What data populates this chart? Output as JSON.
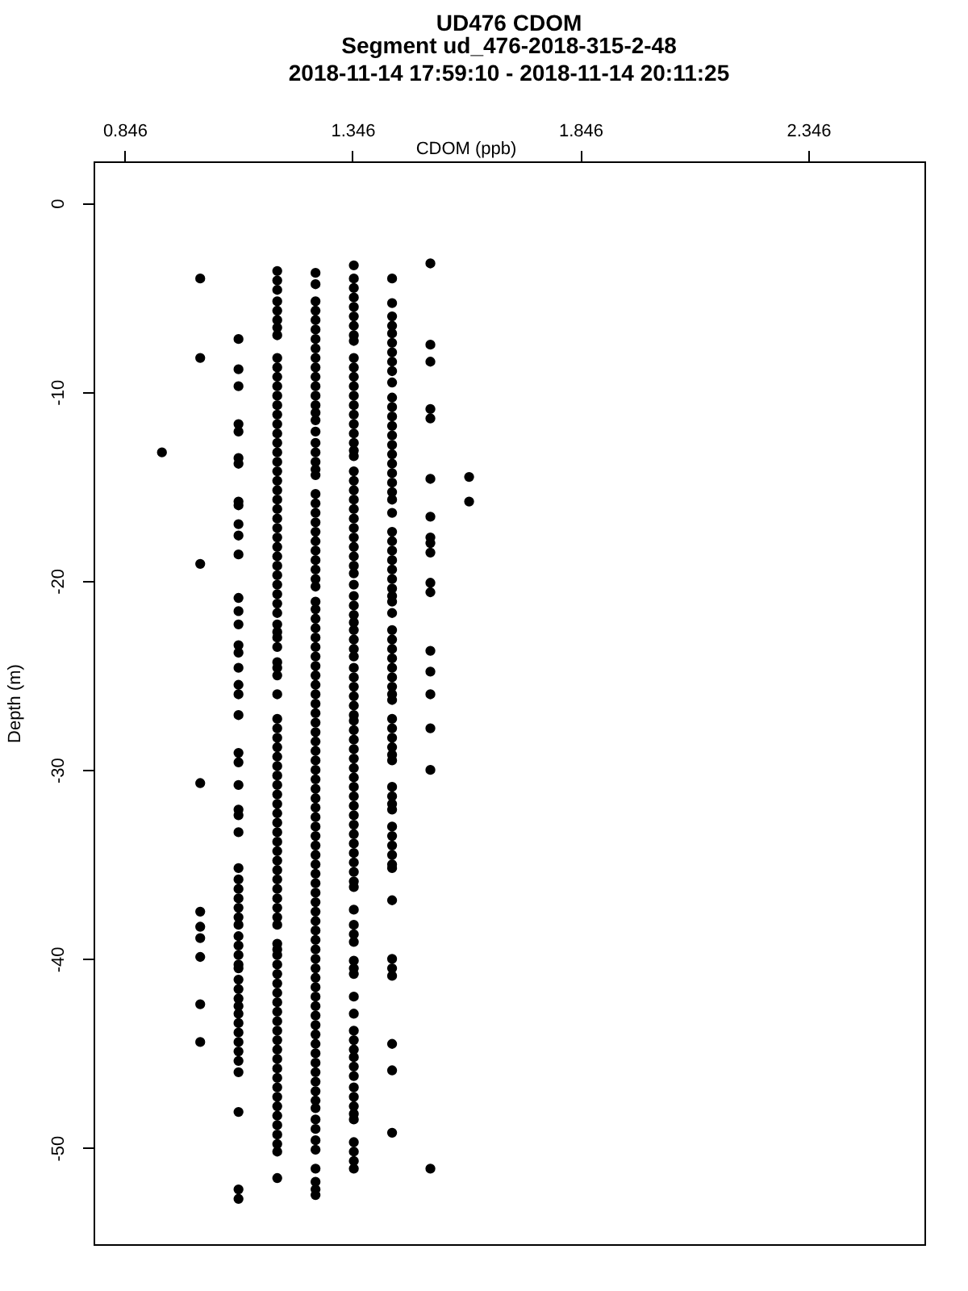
{
  "chart_data": {
    "type": "scatter",
    "title": "UD476 CDOM",
    "subtitle": "Segment ud_476-2018-315-2-48\n2018-11-14 17:59:10 - 2018-11-14 20:11:25",
    "xlabel": "CDOM (ppb)",
    "ylabel": "Depth (m)",
    "xlim": [
      0.778,
      2.601
    ],
    "ylim": [
      -55.1,
      2.2
    ],
    "xticks": [
      0.846,
      1.346,
      1.846,
      2.346
    ],
    "yticks": [
      0,
      -10,
      -20,
      -30,
      -40,
      -50
    ],
    "marker": "circle",
    "grid": false,
    "legend": false,
    "series": [
      {
        "color": "#000000",
        "x": [
          0.928
        ],
        "values": [
          -13.2
        ]
      },
      {
        "color": "#000000",
        "x": [
          1.012,
          1.012,
          1.012,
          1.012,
          1.012,
          1.012,
          1.012,
          1.012,
          1.012,
          1.012
        ],
        "values": [
          -4.0,
          -8.2,
          -19.1,
          -30.7,
          -37.5,
          -38.3,
          -38.9,
          -39.9,
          -42.4,
          -44.4
        ]
      },
      {
        "color": "#000000",
        "x": [
          1.096,
          1.096,
          1.096,
          1.096,
          1.096,
          1.096,
          1.096,
          1.096,
          1.096,
          1.096,
          1.096,
          1.096,
          1.096,
          1.096,
          1.096,
          1.096,
          1.096,
          1.096,
          1.096,
          1.096,
          1.096,
          1.096,
          1.096,
          1.096,
          1.096,
          1.096,
          1.096,
          1.096,
          1.096,
          1.096,
          1.096,
          1.096,
          1.096,
          1.096,
          1.096,
          1.096,
          1.096,
          1.096,
          1.096,
          1.096,
          1.096,
          1.096,
          1.096,
          1.096,
          1.096,
          1.096,
          1.096,
          1.096,
          1.096,
          1.096,
          1.096,
          1.096,
          1.096
        ],
        "values": [
          -7.2,
          -8.8,
          -9.7,
          -11.7,
          -12.1,
          -13.5,
          -13.8,
          -15.8,
          -16.0,
          -17.0,
          -17.6,
          -18.6,
          -20.9,
          -21.6,
          -22.3,
          -23.4,
          -23.8,
          -24.6,
          -25.5,
          -26.0,
          -27.1,
          -29.1,
          -29.6,
          -30.8,
          -32.1,
          -32.4,
          -33.3,
          -35.2,
          -35.8,
          -36.3,
          -36.8,
          -37.3,
          -37.8,
          -38.2,
          -38.8,
          -39.3,
          -39.8,
          -40.3,
          -40.5,
          -41.1,
          -41.6,
          -42.1,
          -42.5,
          -42.9,
          -43.4,
          -43.9,
          -44.4,
          -44.9,
          -45.4,
          -46.0,
          -48.1,
          -52.2,
          -52.7
        ]
      },
      {
        "color": "#000000",
        "x": [
          1.181,
          1.181,
          1.181,
          1.181,
          1.181,
          1.181,
          1.181,
          1.181,
          1.181,
          1.181,
          1.181,
          1.181,
          1.181,
          1.181,
          1.181,
          1.181,
          1.181,
          1.181,
          1.181,
          1.181,
          1.181,
          1.181,
          1.181,
          1.181,
          1.181,
          1.181,
          1.181,
          1.181,
          1.181,
          1.181,
          1.181,
          1.181,
          1.181,
          1.181,
          1.181,
          1.181,
          1.181,
          1.181,
          1.181,
          1.181,
          1.181,
          1.181,
          1.181,
          1.181,
          1.181,
          1.181,
          1.181,
          1.181,
          1.181,
          1.181,
          1.181,
          1.181,
          1.181,
          1.181,
          1.181,
          1.181,
          1.181,
          1.181,
          1.181,
          1.181,
          1.181,
          1.181,
          1.181,
          1.181,
          1.181,
          1.181,
          1.181,
          1.181,
          1.181,
          1.181,
          1.181,
          1.181,
          1.181,
          1.181,
          1.181,
          1.181,
          1.181,
          1.181,
          1.181,
          1.181,
          1.181,
          1.181,
          1.181,
          1.181,
          1.181,
          1.181,
          1.181,
          1.181,
          1.181,
          1.181,
          1.181,
          1.181
        ],
        "values": [
          -3.6,
          -4.1,
          -4.6,
          -5.2,
          -5.7,
          -6.2,
          -6.6,
          -7.0,
          -8.2,
          -8.7,
          -9.2,
          -9.7,
          -10.2,
          -10.7,
          -11.2,
          -11.7,
          -12.2,
          -12.7,
          -13.2,
          -13.7,
          -14.2,
          -14.7,
          -15.2,
          -15.7,
          -16.2,
          -16.7,
          -17.2,
          -17.7,
          -18.2,
          -18.7,
          -19.2,
          -19.7,
          -20.2,
          -20.7,
          -21.2,
          -21.7,
          -22.3,
          -22.7,
          -23.0,
          -23.5,
          -24.3,
          -24.6,
          -25.0,
          -26.0,
          -27.3,
          -27.8,
          -28.3,
          -28.8,
          -29.3,
          -29.8,
          -30.3,
          -30.8,
          -31.3,
          -31.8,
          -32.3,
          -32.8,
          -33.3,
          -33.8,
          -34.3,
          -34.8,
          -35.3,
          -35.8,
          -36.3,
          -36.8,
          -37.3,
          -37.8,
          -38.2,
          -39.2,
          -39.5,
          -39.8,
          -40.3,
          -40.8,
          -41.3,
          -41.8,
          -42.3,
          -42.8,
          -43.3,
          -43.8,
          -44.3,
          -44.8,
          -45.3,
          -45.8,
          -46.3,
          -46.8,
          -47.3,
          -47.8,
          -48.3,
          -48.8,
          -49.3,
          -49.8,
          -50.2,
          -51.6
        ]
      },
      {
        "color": "#000000",
        "x": [
          1.265,
          1.265,
          1.265,
          1.265,
          1.265,
          1.265,
          1.265,
          1.265,
          1.265,
          1.265,
          1.265,
          1.265,
          1.265,
          1.265,
          1.265,
          1.265,
          1.265,
          1.265,
          1.265,
          1.265,
          1.265,
          1.265,
          1.265,
          1.265,
          1.265,
          1.265,
          1.265,
          1.265,
          1.265,
          1.265,
          1.265,
          1.265,
          1.265,
          1.265,
          1.265,
          1.265,
          1.265,
          1.265,
          1.265,
          1.265,
          1.265,
          1.265,
          1.265,
          1.265,
          1.265,
          1.265,
          1.265,
          1.265,
          1.265,
          1.265,
          1.265,
          1.265,
          1.265,
          1.265,
          1.265,
          1.265,
          1.265,
          1.265,
          1.265,
          1.265,
          1.265,
          1.265,
          1.265,
          1.265,
          1.265,
          1.265,
          1.265,
          1.265,
          1.265,
          1.265,
          1.265,
          1.265,
          1.265,
          1.265,
          1.265,
          1.265,
          1.265,
          1.265,
          1.265,
          1.265,
          1.265,
          1.265,
          1.265,
          1.265,
          1.265,
          1.265,
          1.265,
          1.265,
          1.265,
          1.265,
          1.265,
          1.265,
          1.265,
          1.265,
          1.265,
          1.265
        ],
        "values": [
          -3.7,
          -4.3,
          -5.2,
          -5.7,
          -6.2,
          -6.7,
          -7.2,
          -7.7,
          -8.2,
          -8.7,
          -9.2,
          -9.7,
          -10.2,
          -10.7,
          -11.1,
          -11.5,
          -12.1,
          -12.7,
          -13.2,
          -13.7,
          -14.1,
          -14.4,
          -15.4,
          -15.9,
          -16.4,
          -16.9,
          -17.4,
          -17.9,
          -18.4,
          -18.9,
          -19.4,
          -19.9,
          -20.3,
          -21.1,
          -21.5,
          -22.0,
          -22.5,
          -23.0,
          -23.5,
          -24.0,
          -24.5,
          -25.0,
          -25.5,
          -26.0,
          -26.5,
          -27.0,
          -27.5,
          -28.0,
          -28.5,
          -29.0,
          -29.5,
          -30.0,
          -30.5,
          -31.0,
          -31.5,
          -32.0,
          -32.5,
          -33.0,
          -33.5,
          -34.0,
          -34.5,
          -35.0,
          -35.5,
          -36.0,
          -36.5,
          -37.0,
          -37.5,
          -38.0,
          -38.5,
          -39.0,
          -39.5,
          -40.0,
          -40.5,
          -41.0,
          -41.5,
          -42.0,
          -42.5,
          -43.0,
          -43.5,
          -44.0,
          -44.5,
          -45.0,
          -45.5,
          -46.0,
          -46.5,
          -47.0,
          -47.5,
          -47.9,
          -48.5,
          -49.0,
          -49.6,
          -50.1,
          -51.1,
          -51.8,
          -52.2,
          -52.5
        ]
      },
      {
        "color": "#000000",
        "x": [
          1.349,
          1.349,
          1.349,
          1.349,
          1.349,
          1.349,
          1.349,
          1.349,
          1.349,
          1.349,
          1.349,
          1.349,
          1.349,
          1.349,
          1.349,
          1.349,
          1.349,
          1.349,
          1.349,
          1.349,
          1.349,
          1.349,
          1.349,
          1.349,
          1.349,
          1.349,
          1.349,
          1.349,
          1.349,
          1.349,
          1.349,
          1.349,
          1.349,
          1.349,
          1.349,
          1.349,
          1.349,
          1.349,
          1.349,
          1.349,
          1.349,
          1.349,
          1.349,
          1.349,
          1.349,
          1.349,
          1.349,
          1.349,
          1.349,
          1.349,
          1.349,
          1.349,
          1.349,
          1.349,
          1.349,
          1.349,
          1.349,
          1.349,
          1.349,
          1.349,
          1.349,
          1.349,
          1.349,
          1.349,
          1.349,
          1.349,
          1.349,
          1.349,
          1.349,
          1.349,
          1.349,
          1.349,
          1.349,
          1.349,
          1.349,
          1.349,
          1.349,
          1.349,
          1.349,
          1.349,
          1.349,
          1.349,
          1.349,
          1.349,
          1.349,
          1.349,
          1.349,
          1.349,
          1.349,
          1.349,
          1.349
        ],
        "values": [
          -3.3,
          -4.0,
          -4.5,
          -5.0,
          -5.5,
          -6.0,
          -6.5,
          -7.0,
          -7.3,
          -8.2,
          -8.7,
          -9.2,
          -9.7,
          -10.2,
          -10.7,
          -11.2,
          -11.7,
          -12.2,
          -12.7,
          -13.1,
          -13.4,
          -14.2,
          -14.7,
          -15.2,
          -15.7,
          -16.2,
          -16.7,
          -17.2,
          -17.7,
          -18.2,
          -18.7,
          -19.2,
          -19.6,
          -20.2,
          -20.8,
          -21.3,
          -21.8,
          -22.2,
          -22.6,
          -23.1,
          -23.6,
          -24.0,
          -24.6,
          -25.1,
          -25.6,
          -26.1,
          -26.6,
          -27.1,
          -27.4,
          -27.9,
          -28.4,
          -28.9,
          -29.4,
          -29.9,
          -30.4,
          -30.9,
          -31.4,
          -31.9,
          -32.4,
          -32.9,
          -33.4,
          -33.9,
          -34.4,
          -34.9,
          -35.4,
          -35.9,
          -36.2,
          -37.4,
          -38.2,
          -38.7,
          -39.1,
          -40.1,
          -40.5,
          -40.8,
          -42.0,
          -42.9,
          -43.8,
          -44.3,
          -44.8,
          -45.2,
          -45.7,
          -46.2,
          -46.8,
          -47.3,
          -47.8,
          -48.2,
          -48.5,
          -49.7,
          -50.2,
          -50.7,
          -51.1
        ]
      },
      {
        "color": "#000000",
        "x": [
          1.433,
          1.433,
          1.433,
          1.433,
          1.433,
          1.433,
          1.433,
          1.433,
          1.433,
          1.433,
          1.433,
          1.433,
          1.433,
          1.433,
          1.433,
          1.433,
          1.433,
          1.433,
          1.433,
          1.433,
          1.433,
          1.433,
          1.433,
          1.433,
          1.433,
          1.433,
          1.433,
          1.433,
          1.433,
          1.433,
          1.433,
          1.433,
          1.433,
          1.433,
          1.433,
          1.433,
          1.433,
          1.433,
          1.433,
          1.433,
          1.433,
          1.433,
          1.433,
          1.433,
          1.433,
          1.433,
          1.433,
          1.433,
          1.433,
          1.433,
          1.433,
          1.433,
          1.433,
          1.433,
          1.433,
          1.433,
          1.433,
          1.433,
          1.433,
          1.433,
          1.433,
          1.433,
          1.433,
          1.433,
          1.433
        ],
        "values": [
          -4.0,
          -5.3,
          -6.0,
          -6.5,
          -6.9,
          -7.4,
          -7.9,
          -8.4,
          -8.9,
          -9.5,
          -10.3,
          -10.8,
          -11.3,
          -11.8,
          -12.3,
          -12.8,
          -13.3,
          -13.8,
          -14.3,
          -14.8,
          -15.3,
          -15.7,
          -16.4,
          -17.4,
          -17.9,
          -18.4,
          -18.9,
          -19.4,
          -19.9,
          -20.4,
          -20.8,
          -21.1,
          -21.7,
          -22.6,
          -23.1,
          -23.6,
          -24.1,
          -24.6,
          -25.1,
          -25.6,
          -26.0,
          -26.3,
          -27.3,
          -27.8,
          -28.3,
          -28.8,
          -29.2,
          -29.5,
          -30.9,
          -31.4,
          -31.8,
          -32.1,
          -33.0,
          -33.5,
          -34.0,
          -34.5,
          -35.0,
          -35.2,
          -36.9,
          -40.0,
          -40.5,
          -40.9,
          -44.5,
          -45.9,
          -49.2
        ]
      },
      {
        "color": "#000000",
        "x": [
          1.517,
          1.517,
          1.517,
          1.517,
          1.517,
          1.517,
          1.517,
          1.517,
          1.517,
          1.517,
          1.517,
          1.517,
          1.517,
          1.517,
          1.517,
          1.517,
          1.517,
          1.517
        ],
        "values": [
          -3.2,
          -7.5,
          -8.4,
          -10.9,
          -11.4,
          -14.6,
          -16.6,
          -17.7,
          -18.0,
          -18.5,
          -20.1,
          -20.6,
          -23.7,
          -24.8,
          -26.0,
          -27.8,
          -30.0,
          -51.1
        ]
      },
      {
        "color": "#000000",
        "x": [
          1.602,
          1.602
        ],
        "values": [
          -14.5,
          -15.8
        ]
      }
    ]
  }
}
